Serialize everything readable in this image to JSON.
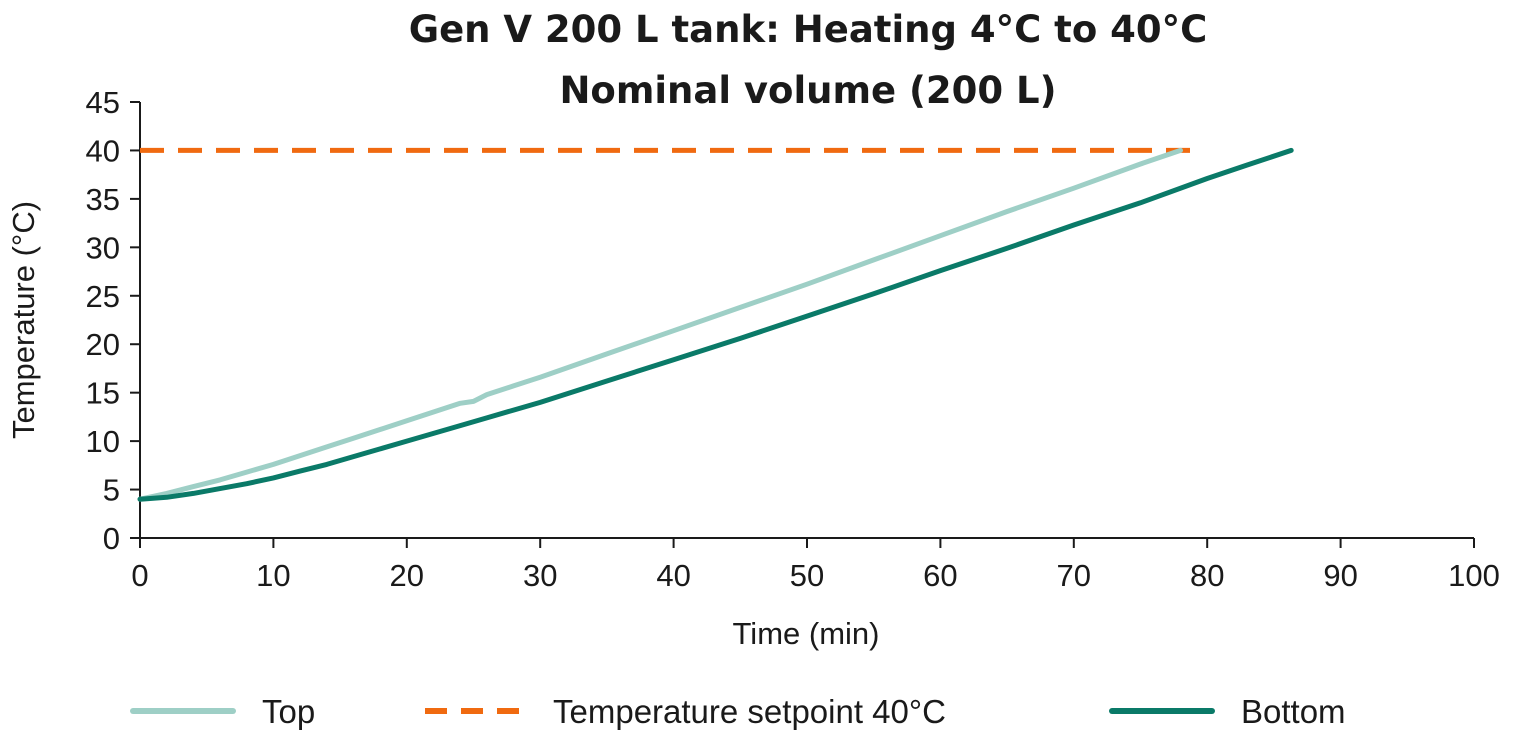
{
  "chart_data": {
    "type": "line",
    "title": "Gen V 200 L tank: Heating 4°C to 40°C",
    "subtitle": "Nominal volume (200 L)",
    "xlabel": "Time (min)",
    "ylabel": "Temperature (°C)",
    "xlim": [
      0,
      100
    ],
    "ylim": [
      0,
      45
    ],
    "x_ticks": [
      "0",
      "10",
      "20",
      "30",
      "40",
      "50",
      "60",
      "70",
      "80",
      "90",
      "100"
    ],
    "y_ticks": [
      "0",
      "5",
      "10",
      "15",
      "20",
      "25",
      "30",
      "35",
      "40",
      "45"
    ],
    "grid": false,
    "legend_position": "bottom",
    "series": [
      {
        "name": "Top",
        "color": "#9ecfc6",
        "style": "solid",
        "x": [
          0,
          2,
          4,
          6,
          8,
          10,
          12,
          14,
          16,
          18,
          20,
          22,
          24,
          25,
          26,
          28,
          30,
          35,
          40,
          45,
          50,
          55,
          60,
          65,
          70,
          75,
          78
        ],
        "y": [
          4.0,
          4.6,
          5.3,
          6.0,
          6.8,
          7.6,
          8.5,
          9.4,
          10.3,
          11.2,
          12.1,
          13.0,
          13.9,
          14.1,
          14.8,
          15.7,
          16.6,
          19.0,
          21.4,
          23.8,
          26.2,
          28.7,
          31.2,
          33.7,
          36.1,
          38.6,
          40.0
        ]
      },
      {
        "name": "Temperature setpoint 40°C",
        "color": "#f06a10",
        "style": "dashed",
        "x": [
          0,
          79
        ],
        "y": [
          40,
          40
        ]
      },
      {
        "name": "Bottom",
        "color": "#0a7a68",
        "style": "solid",
        "x": [
          0,
          2,
          4,
          6,
          8,
          10,
          12,
          14,
          16,
          18,
          20,
          22,
          24,
          26,
          28,
          30,
          35,
          40,
          45,
          50,
          55,
          60,
          65,
          70,
          75,
          80,
          83,
          86.3
        ],
        "y": [
          4.0,
          4.2,
          4.6,
          5.1,
          5.6,
          6.2,
          6.9,
          7.6,
          8.4,
          9.2,
          10.0,
          10.8,
          11.6,
          12.4,
          13.2,
          14.0,
          16.2,
          18.4,
          20.6,
          22.9,
          25.2,
          27.6,
          29.9,
          32.3,
          34.6,
          37.1,
          38.5,
          40.0
        ]
      }
    ],
    "legend": [
      {
        "label": "Top",
        "color": "#9ecfc6",
        "style": "solid"
      },
      {
        "label": "Temperature setpoint 40°C",
        "color": "#f06a10",
        "style": "dashed"
      },
      {
        "label": "Bottom",
        "color": "#0a7a68",
        "style": "solid"
      }
    ]
  }
}
